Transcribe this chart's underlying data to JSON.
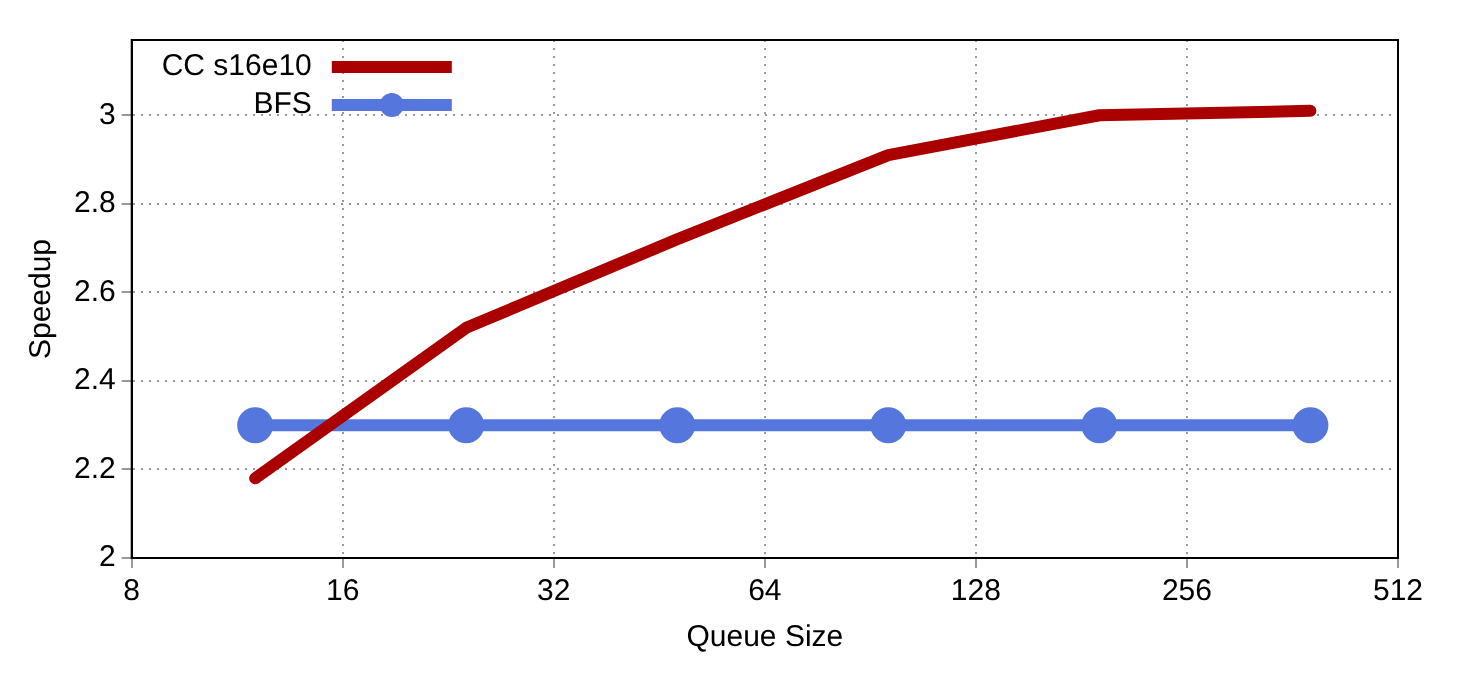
{
  "chart_data": {
    "type": "line",
    "xlabel": "Queue Size",
    "ylabel": "Speedup",
    "x": [
      12,
      24,
      48,
      96,
      192,
      384
    ],
    "series": [
      {
        "name": "CC s16e10",
        "color": "#aa0000",
        "marker": "none",
        "values": [
          2.18,
          2.52,
          2.72,
          2.91,
          3.0,
          3.01
        ]
      },
      {
        "name": "BFS",
        "color": "#5577dd",
        "marker": "circle",
        "values": [
          2.3,
          2.3,
          2.3,
          2.3,
          2.3,
          2.3
        ]
      }
    ],
    "log": "x",
    "xlim": [
      8,
      512
    ],
    "xticks": [
      8,
      16,
      32,
      64,
      128,
      256,
      512
    ],
    "ylim": [
      2,
      3.17
    ],
    "yticks": [
      2,
      2.2,
      2.4,
      2.6,
      2.8,
      3
    ],
    "grid": true,
    "legend": "top left",
    "line_style": "solid"
  }
}
